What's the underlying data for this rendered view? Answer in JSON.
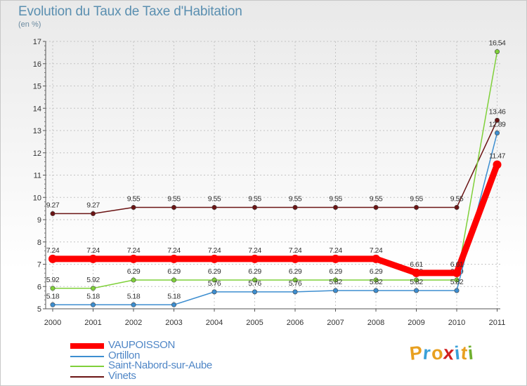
{
  "title": "Evolution du Taux de Taxe d'Habitation",
  "unit": "(en %)",
  "brand": {
    "letters": [
      "P",
      "r",
      "o",
      "x",
      "i",
      "t",
      "i"
    ],
    "colors": [
      "#e8a020",
      "#3aa0d8",
      "#e8a020",
      "#d02020",
      "#3aa0d8",
      "#e8a020",
      "#70b030"
    ]
  },
  "chart_data": {
    "type": "line",
    "title": "Evolution du Taux de Taxe d'Habitation",
    "ylabel": "(en %)",
    "xlabel": "",
    "ylim": [
      5,
      17
    ],
    "yticks": [
      "5",
      "6",
      "7",
      "8",
      "9",
      "10",
      "11",
      "12",
      "13",
      "14",
      "15",
      "16",
      "17"
    ],
    "categories": [
      "2000",
      "2001",
      "2002",
      "2003",
      "2004",
      "2005",
      "2006",
      "2007",
      "2008",
      "2009",
      "2010",
      "2011"
    ],
    "series": [
      {
        "name": "Vinets",
        "color": "#6b1414",
        "values": [
          9.27,
          9.27,
          9.55,
          9.55,
          9.55,
          9.55,
          9.55,
          9.55,
          9.55,
          9.55,
          9.55,
          13.46
        ],
        "labels": [
          "9.27",
          "9.27",
          "9.55",
          "9.55",
          "9.55",
          "9.55",
          "9.55",
          "9.55",
          "9.55",
          "9.55",
          "9.55",
          "13.46"
        ]
      },
      {
        "name": "Saint-Nabord-sur-Aube",
        "color": "#7fd03a",
        "values": [
          5.92,
          5.92,
          6.29,
          6.29,
          6.29,
          6.29,
          6.29,
          6.29,
          6.29,
          6.29,
          6.29,
          16.54
        ],
        "labels": [
          "5.92",
          "5.92",
          "6.29",
          "6.29",
          "6.29",
          "6.29",
          "6.29",
          "6.29",
          "6.29",
          "6.29",
          "6.29",
          "16.54"
        ]
      },
      {
        "name": "Ortillon",
        "color": "#3d8ed0",
        "values": [
          5.18,
          5.18,
          5.18,
          5.18,
          5.76,
          5.76,
          5.76,
          5.82,
          5.82,
          5.82,
          5.82,
          12.89
        ],
        "labels": [
          "5.18",
          "5.18",
          "5.18",
          "5.18",
          "5.76",
          "5.76",
          "5.76",
          "5.82",
          "5.82",
          "5.82",
          "5.82",
          "12.89"
        ]
      },
      {
        "name": "VAUPOISSON",
        "color": "#ff0000",
        "values": [
          7.24,
          7.24,
          7.24,
          7.24,
          7.24,
          7.24,
          7.24,
          7.24,
          7.24,
          6.61,
          6.61,
          11.47
        ],
        "labels": [
          "7.24",
          "7.24",
          "7.24",
          "7.24",
          "7.24",
          "7.24",
          "7.24",
          "7.24",
          "7.24",
          "6.61",
          "6.61",
          "11.47"
        ]
      }
    ],
    "legend_order": [
      "VAUPOISSON",
      "Ortillon",
      "Saint-Nabord-sur-Aube",
      "Vinets"
    ]
  }
}
